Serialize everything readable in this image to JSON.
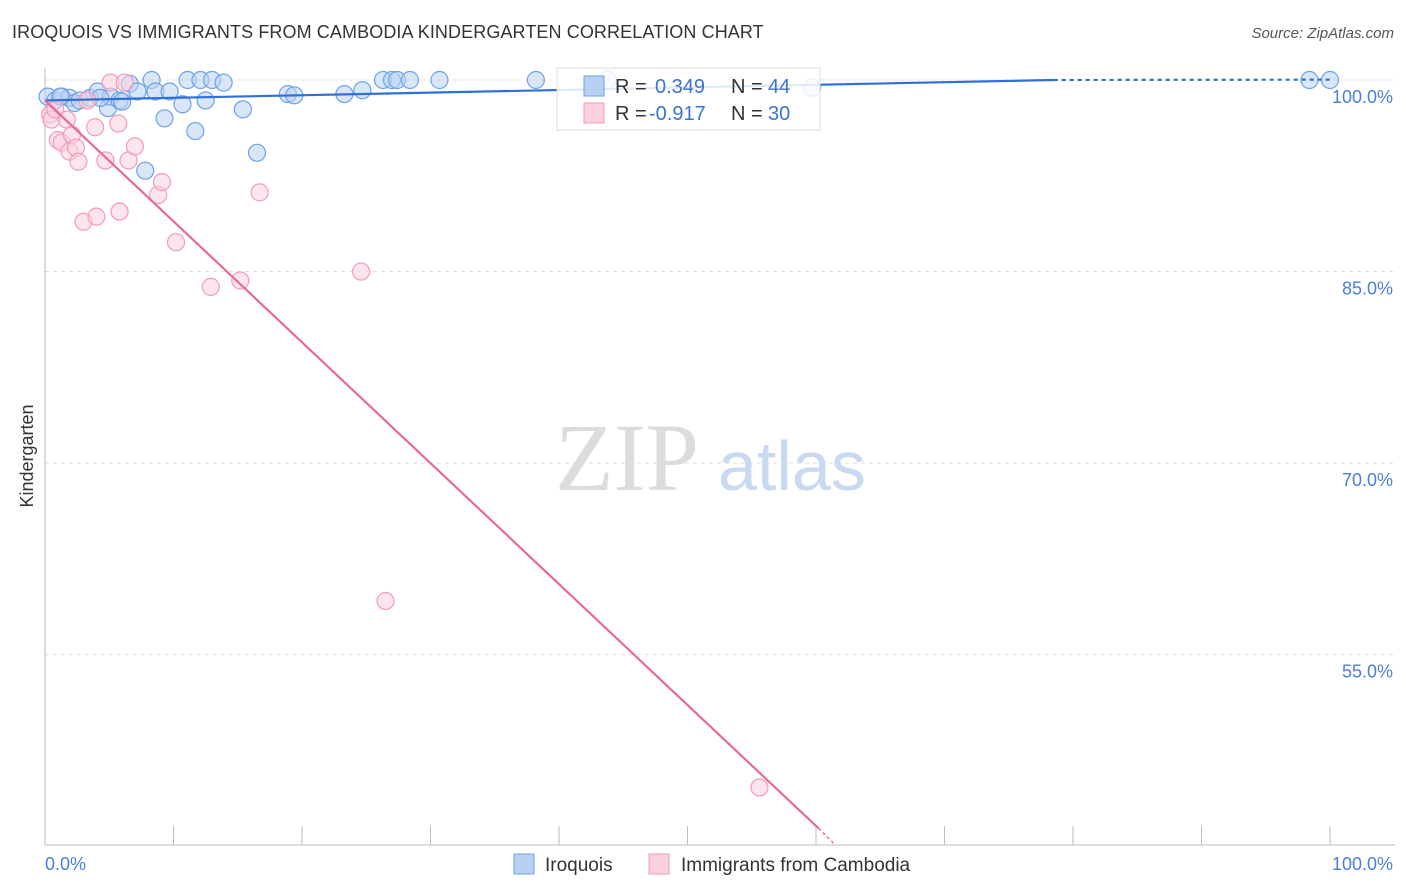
{
  "title": "IROQUOIS VS IMMIGRANTS FROM CAMBODIA KINDERGARTEN CORRELATION CHART",
  "source": "Source: ZipAtlas.com",
  "watermark": "ZIPatlas",
  "chart_data": {
    "type": "scatter",
    "title": "IROQUOIS VS IMMIGRANTS FROM CAMBODIA KINDERGARTEN CORRELATION CHART",
    "xlabel": "",
    "ylabel": "Kindergarten",
    "xlim": [
      0,
      100
    ],
    "ylim": [
      40.1,
      100.9
    ],
    "x_tick_labels": [
      "0.0%",
      "100.0%"
    ],
    "y_ticks": [
      100,
      85,
      70,
      55
    ],
    "y_tick_labels": [
      "100.0%",
      "85.0%",
      "70.0%",
      "55.0%"
    ],
    "grid": true,
    "legend_position": "top-center",
    "colors": {
      "Iroquois": "#6fa1e6",
      "Immigrants from Cambodia": "#f29bb8",
      "blue_line": "#2f6fd6",
      "pink_line": "#e8689a"
    },
    "legend": [
      {
        "name": "Iroquois",
        "r_label": "R =",
        "r": "0.349",
        "n_label": "N =",
        "n": "44"
      },
      {
        "name": "Immigrants from Cambodia",
        "r_label": "R =",
        "r": "-0.917",
        "n_label": "N =",
        "n": "30"
      }
    ],
    "series": [
      {
        "name": "Iroquois",
        "trend": [
          [
            0,
            98.4
          ],
          [
            78.5,
            100.0
          ]
        ],
        "points": [
          [
            0.2,
            98.7
          ],
          [
            0.8,
            98.4
          ],
          [
            1.3,
            98.7
          ],
          [
            1.9,
            98.6
          ],
          [
            2.3,
            98.2
          ],
          [
            2.7,
            98.4
          ],
          [
            3.5,
            98.6
          ],
          [
            4.1,
            99.1
          ],
          [
            4.9,
            97.8
          ],
          [
            5.1,
            98.7
          ],
          [
            5.8,
            98.4
          ],
          [
            6.0,
            98.3
          ],
          [
            6.6,
            99.7
          ],
          [
            7.2,
            99.1
          ],
          [
            8.3,
            100
          ],
          [
            8.6,
            99.1
          ],
          [
            9.3,
            97.0
          ],
          [
            9.7,
            99.1
          ],
          [
            10.7,
            98.1
          ],
          [
            11.1,
            100
          ],
          [
            11.7,
            96.0
          ],
          [
            12.1,
            100
          ],
          [
            12.5,
            98.4
          ],
          [
            13.0,
            100
          ],
          [
            13.9,
            99.8
          ],
          [
            15.4,
            97.7
          ],
          [
            16.5,
            94.3
          ],
          [
            7.8,
            92.9
          ],
          [
            18.9,
            98.9
          ],
          [
            19.4,
            98.8
          ],
          [
            23.3,
            98.9
          ],
          [
            24.7,
            99.2
          ],
          [
            26.3,
            100
          ],
          [
            27.0,
            100
          ],
          [
            27.4,
            100
          ],
          [
            28.4,
            100
          ],
          [
            30.7,
            100
          ],
          [
            38.2,
            100
          ],
          [
            43.8,
            100
          ],
          [
            59.7,
            99.4
          ],
          [
            98.4,
            100
          ],
          [
            100,
            100
          ],
          [
            1.2,
            98.7
          ],
          [
            4.3,
            98.6
          ]
        ]
      },
      {
        "name": "Immigrants from Cambodia",
        "trend": [
          [
            0,
            98.4
          ],
          [
            60.2,
            41.4
          ]
        ],
        "trend_extension": [
          [
            60.2,
            41.4
          ],
          [
            61.5,
            40.1
          ]
        ],
        "points": [
          [
            0.4,
            97.3
          ],
          [
            0.5,
            96.9
          ],
          [
            0.8,
            97.7
          ],
          [
            1.0,
            95.3
          ],
          [
            1.3,
            95.1
          ],
          [
            1.7,
            96.9
          ],
          [
            1.9,
            94.4
          ],
          [
            2.1,
            95.7
          ],
          [
            2.4,
            94.7
          ],
          [
            2.6,
            93.6
          ],
          [
            3.0,
            88.9
          ],
          [
            3.3,
            98.4
          ],
          [
            3.9,
            96.3
          ],
          [
            4.0,
            89.3
          ],
          [
            4.7,
            93.7
          ],
          [
            5.1,
            99.8
          ],
          [
            5.7,
            96.6
          ],
          [
            5.8,
            89.7
          ],
          [
            6.2,
            99.8
          ],
          [
            6.5,
            93.7
          ],
          [
            7.0,
            94.8
          ],
          [
            8.8,
            91.0
          ],
          [
            9.1,
            92.0
          ],
          [
            10.2,
            87.3
          ],
          [
            12.9,
            83.8
          ],
          [
            15.2,
            84.3
          ],
          [
            16.7,
            91.2
          ],
          [
            24.6,
            85.0
          ],
          [
            26.5,
            59.2
          ],
          [
            55.6,
            44.6
          ]
        ]
      }
    ]
  }
}
